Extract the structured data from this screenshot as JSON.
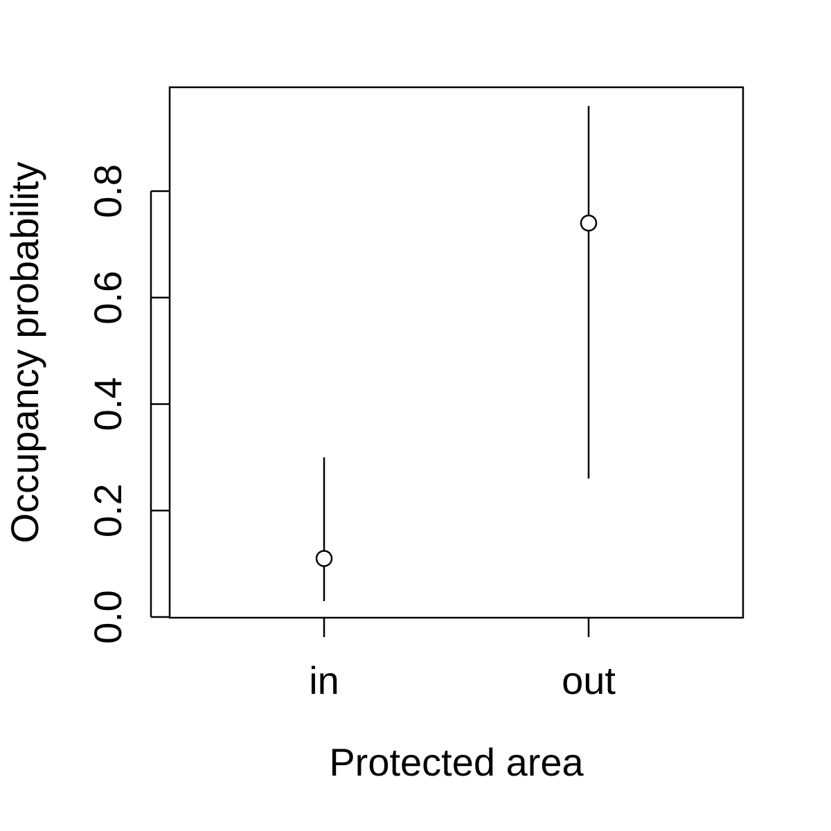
{
  "chart_data": {
    "type": "scatter",
    "title": "",
    "xlabel": "Protected area",
    "ylabel": "Occupancy probability",
    "categories": [
      "in",
      "out"
    ],
    "ylim": [
      0.0,
      1.0
    ],
    "yticks": [
      "0.0",
      "0.2",
      "0.4",
      "0.6",
      "0.8"
    ],
    "grid": false,
    "legend": "none",
    "series": [
      {
        "estimate": [
          0.11,
          0.74
        ],
        "lower": [
          0.03,
          0.26
        ],
        "upper": [
          0.3,
          0.96
        ]
      }
    ]
  }
}
